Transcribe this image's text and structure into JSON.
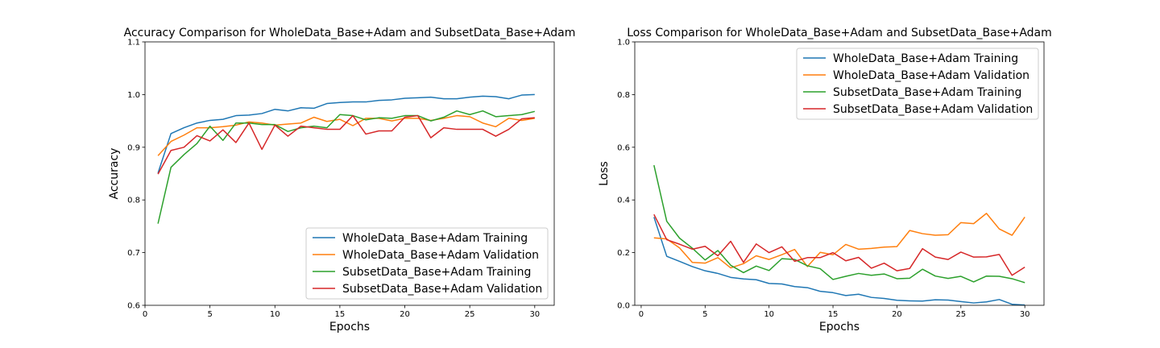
{
  "chart_data": [
    {
      "type": "line",
      "title": "Accuracy Comparison for WholeData_Base+Adam and SubsetData_Base+Adam",
      "xlabel": "Epochs",
      "ylabel": "Accuracy",
      "xlim": [
        0,
        31.5
      ],
      "ylim": [
        0.6,
        1.1
      ],
      "xticks": [
        0,
        5,
        10,
        15,
        20,
        25,
        30
      ],
      "yticks": [
        0.6,
        0.7,
        0.8,
        0.9,
        1.0,
        1.1
      ],
      "ytick_labels": [
        "0.6",
        "0.7",
        "0.8",
        "0.9",
        "1.0",
        "1.1"
      ],
      "legend_position": "bottom-right",
      "grid": false,
      "x": [
        1,
        2,
        3,
        4,
        5,
        6,
        7,
        8,
        9,
        10,
        11,
        12,
        13,
        14,
        15,
        16,
        17,
        18,
        19,
        20,
        21,
        22,
        23,
        24,
        25,
        26,
        27,
        28,
        29,
        30
      ],
      "series": [
        {
          "name": "WholeData_Base+Adam Training",
          "color": "#1f77b4",
          "values": [
            0.851,
            0.926,
            0.937,
            0.946,
            0.951,
            0.953,
            0.96,
            0.961,
            0.964,
            0.972,
            0.969,
            0.975,
            0.974,
            0.983,
            0.985,
            0.986,
            0.986,
            0.989,
            0.99,
            0.993,
            0.994,
            0.995,
            0.992,
            0.992,
            0.995,
            0.997,
            0.996,
            0.992,
            0.999,
            1.0
          ]
        },
        {
          "name": "WholeData_Base+Adam Validation",
          "color": "#ff7f0e",
          "values": [
            0.884,
            0.911,
            0.923,
            0.937,
            0.937,
            0.939,
            0.942,
            0.948,
            0.946,
            0.942,
            0.944,
            0.946,
            0.957,
            0.949,
            0.953,
            0.941,
            0.955,
            0.955,
            0.95,
            0.955,
            0.955,
            0.951,
            0.955,
            0.96,
            0.958,
            0.946,
            0.939,
            0.955,
            0.951,
            0.955
          ]
        },
        {
          "name": "SubsetData_Base+Adam Training",
          "color": "#2ca02c",
          "values": [
            0.755,
            0.862,
            0.886,
            0.907,
            0.94,
            0.913,
            0.946,
            0.946,
            0.943,
            0.943,
            0.93,
            0.937,
            0.94,
            0.937,
            0.962,
            0.96,
            0.952,
            0.956,
            0.955,
            0.96,
            0.96,
            0.95,
            0.957,
            0.969,
            0.962,
            0.969,
            0.958,
            0.96,
            0.962,
            0.968
          ]
        },
        {
          "name": "SubsetData_Base+Adam Validation",
          "color": "#d62728",
          "values": [
            0.849,
            0.894,
            0.9,
            0.922,
            0.912,
            0.933,
            0.909,
            0.946,
            0.896,
            0.942,
            0.921,
            0.94,
            0.937,
            0.934,
            0.934,
            0.96,
            0.925,
            0.931,
            0.931,
            0.957,
            0.96,
            0.918,
            0.937,
            0.934,
            0.934,
            0.934,
            0.921,
            0.934,
            0.954,
            0.956
          ]
        }
      ]
    },
    {
      "type": "line",
      "title": "Loss Comparison for WholeData_Base+Adam and SubsetData_Base+Adam",
      "xlabel": "Epochs",
      "ylabel": "Loss",
      "xlim": [
        -0.5,
        31.5
      ],
      "ylim": [
        0.0,
        1.0
      ],
      "xticks": [
        0,
        5,
        10,
        15,
        20,
        25,
        30
      ],
      "yticks": [
        0.0,
        0.2,
        0.4,
        0.6,
        0.8,
        1.0
      ],
      "ytick_labels": [
        "0.0",
        "0.2",
        "0.4",
        "0.6",
        "0.8",
        "1.0"
      ],
      "legend_position": "top-right",
      "grid": false,
      "x": [
        1,
        2,
        3,
        4,
        5,
        6,
        7,
        8,
        9,
        10,
        11,
        12,
        13,
        14,
        15,
        16,
        17,
        18,
        19,
        20,
        21,
        22,
        23,
        24,
        25,
        26,
        27,
        28,
        29,
        30
      ],
      "series": [
        {
          "name": "WholeData_Base+Adam Training",
          "color": "#1f77b4",
          "values": [
            0.335,
            0.186,
            0.167,
            0.147,
            0.131,
            0.121,
            0.106,
            0.1,
            0.097,
            0.083,
            0.081,
            0.071,
            0.067,
            0.053,
            0.048,
            0.037,
            0.042,
            0.03,
            0.026,
            0.019,
            0.017,
            0.016,
            0.021,
            0.02,
            0.014,
            0.009,
            0.013,
            0.022,
            0.004,
            0.001
          ]
        },
        {
          "name": "WholeData_Base+Adam Validation",
          "color": "#ff7f0e",
          "values": [
            0.256,
            0.252,
            0.218,
            0.163,
            0.16,
            0.181,
            0.142,
            0.158,
            0.188,
            0.174,
            0.192,
            0.212,
            0.147,
            0.201,
            0.192,
            0.231,
            0.213,
            0.216,
            0.221,
            0.223,
            0.284,
            0.272,
            0.266,
            0.268,
            0.314,
            0.31,
            0.349,
            0.29,
            0.266,
            0.335
          ]
        },
        {
          "name": "SubsetData_Base+Adam Training",
          "color": "#2ca02c",
          "values": [
            0.532,
            0.319,
            0.255,
            0.217,
            0.172,
            0.208,
            0.152,
            0.124,
            0.149,
            0.132,
            0.177,
            0.174,
            0.15,
            0.139,
            0.098,
            0.11,
            0.121,
            0.114,
            0.119,
            0.101,
            0.103,
            0.137,
            0.111,
            0.102,
            0.11,
            0.089,
            0.111,
            0.11,
            0.101,
            0.086
          ]
        },
        {
          "name": "SubsetData_Base+Adam Validation",
          "color": "#d62728",
          "values": [
            0.345,
            0.249,
            0.232,
            0.213,
            0.224,
            0.188,
            0.243,
            0.163,
            0.233,
            0.2,
            0.222,
            0.167,
            0.181,
            0.181,
            0.2,
            0.169,
            0.182,
            0.141,
            0.16,
            0.131,
            0.14,
            0.215,
            0.183,
            0.174,
            0.202,
            0.183,
            0.184,
            0.193,
            0.114,
            0.145
          ]
        }
      ]
    }
  ]
}
